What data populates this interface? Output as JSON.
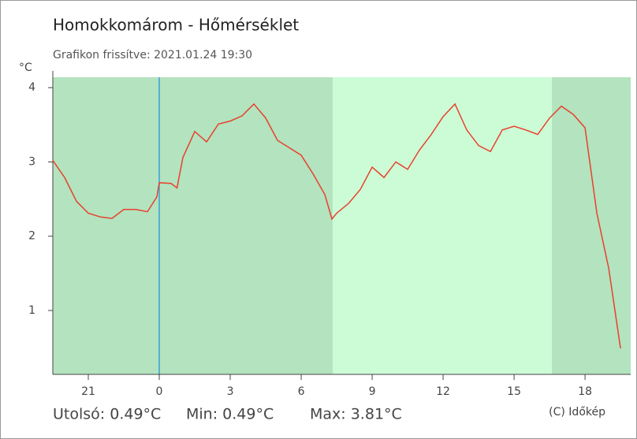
{
  "chart_data": {
    "type": "line",
    "title": "Homokkomárom - Hőmérséklet",
    "subtitle": "Grafikon frissítve: 2021.01.24 19:30",
    "y_label": "°C",
    "footer": [
      "Utolsó: 0.49°C",
      "Min: 0.49°C",
      "Max: 3.81°C"
    ],
    "credit": "(C) Időkép",
    "xlim": [
      -4.5,
      19.93
    ],
    "ylim": [
      0.14,
      4.14
    ],
    "xticks": [
      {
        "value": -3,
        "label": "21"
      },
      0,
      3,
      6,
      9,
      12,
      15,
      18
    ],
    "yticks": [
      1,
      2,
      3,
      4
    ],
    "shaded_regions": [
      {
        "from": -4.5,
        "to": 7.33,
        "color": "#b3e3bf"
      },
      {
        "from": 7.33,
        "to": 16.6,
        "color": "#ccfcd6"
      },
      {
        "from": 16.6,
        "to": 19.93,
        "color": "#b3e3bf"
      }
    ],
    "vlines": [
      {
        "x": 0,
        "color": "#3aa0d8"
      }
    ],
    "series": [
      {
        "name": "Hőmérséklet",
        "color": "#e8412c",
        "x": [
          -4.5,
          -4,
          -3.5,
          -3,
          -2.5,
          -2,
          -1.5,
          -1,
          -0.5,
          -0.1,
          0,
          0.5,
          0.75,
          1,
          1.5,
          2,
          2.5,
          3,
          3.5,
          4,
          4.5,
          5,
          5.5,
          6,
          6.5,
          7,
          7.3,
          7.5,
          8,
          8.5,
          9,
          9.5,
          10,
          10.5,
          11,
          11.5,
          12,
          12.5,
          13,
          13.5,
          14,
          14.5,
          15,
          15.5,
          16,
          16.5,
          17,
          17.5,
          18,
          18.5,
          19,
          19.5
        ],
        "values": [
          3.02,
          2.79,
          2.47,
          2.31,
          2.26,
          2.24,
          2.36,
          2.36,
          2.33,
          2.53,
          2.72,
          2.71,
          2.65,
          3.06,
          3.41,
          3.27,
          3.51,
          3.55,
          3.62,
          3.78,
          3.59,
          3.29,
          3.19,
          3.09,
          2.84,
          2.56,
          2.23,
          2.31,
          2.44,
          2.63,
          2.93,
          2.79,
          3.0,
          2.9,
          3.16,
          3.37,
          3.61,
          3.78,
          3.43,
          3.22,
          3.14,
          3.43,
          3.48,
          3.43,
          3.37,
          3.59,
          3.75,
          3.64,
          3.46,
          2.31,
          1.57,
          0.49
        ]
      }
    ]
  }
}
